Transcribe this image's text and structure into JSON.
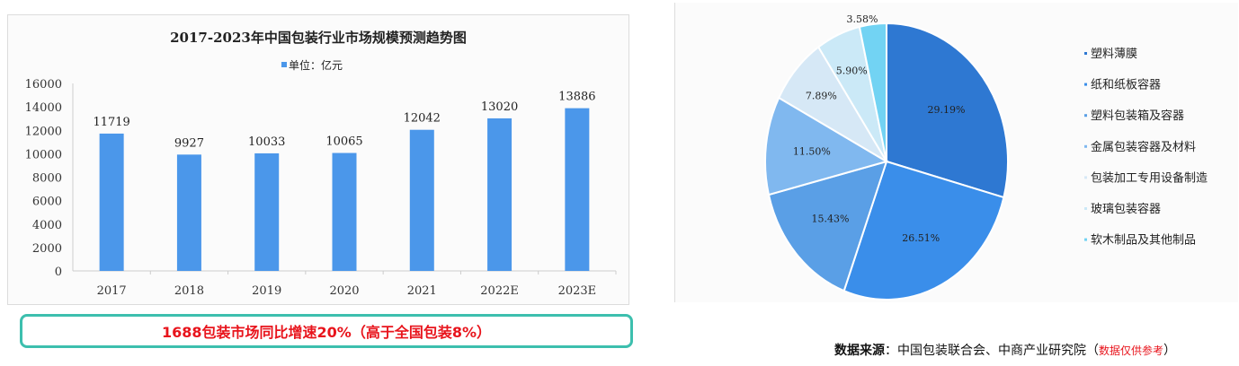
{
  "chart_data": [
    {
      "type": "bar",
      "title": "2017-2023年中国包装行业市场规模预测趋势图",
      "legend": "单位：亿元",
      "legend_placement": "top",
      "categories": [
        "2017",
        "2018",
        "2019",
        "2020",
        "2021",
        "2022E",
        "2023E"
      ],
      "values": [
        11719,
        9927,
        10033,
        10065,
        12042,
        13020,
        13886
      ],
      "ylim": [
        0,
        16000
      ],
      "yticks": [
        "0",
        "2000",
        "4000",
        "6000",
        "8000",
        "10000",
        "12000",
        "14000",
        "16000"
      ],
      "grid": false,
      "color": "#4b97ea"
    },
    {
      "type": "pie",
      "legend_placement": "right",
      "labels": [
        "塑料薄膜",
        "纸和纸板容器",
        "塑料包装箱及容器",
        "金属包装容器及材料",
        "包装加工专用设备制造",
        "玻璃包装容器",
        "软木制品及其他制品"
      ],
      "values": [
        29.19,
        26.51,
        15.43,
        11.5,
        7.89,
        5.9,
        3.58
      ],
      "value_labels": [
        "29.19%",
        "26.51%",
        "15.43%",
        "11.50%",
        "7.89%",
        "5.90%",
        "3.58%"
      ],
      "colors": [
        "#2e78d2",
        "#3a8eea",
        "#5a9fe6",
        "#80b8ef",
        "#d6e8f6",
        "#cbe9f7",
        "#72d3f3"
      ]
    }
  ],
  "callout": "1688包装市场同比增速20%（高于全国包装8%）",
  "source": {
    "label": "数据来源",
    "sep": "：",
    "text": "中国包装联合会、中商产业研究院",
    "open": "（",
    "note": "数据仅供参考",
    "close": "）"
  }
}
